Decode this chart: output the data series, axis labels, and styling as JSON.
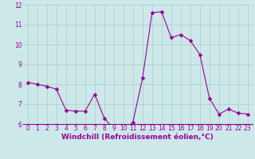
{
  "x": [
    0,
    1,
    2,
    3,
    4,
    5,
    6,
    7,
    8,
    9,
    10,
    11,
    12,
    13,
    14,
    15,
    16,
    17,
    18,
    19,
    20,
    21,
    22,
    23
  ],
  "y": [
    8.1,
    8.0,
    7.9,
    7.75,
    6.7,
    6.65,
    6.65,
    7.5,
    6.3,
    5.75,
    5.6,
    6.1,
    8.3,
    11.6,
    11.65,
    10.35,
    10.5,
    10.2,
    9.5,
    7.3,
    6.5,
    6.75,
    6.55,
    6.5
  ],
  "line_color": "#990099",
  "marker": "D",
  "marker_size": 2.5,
  "marker_color": "#990099",
  "bg_color": "#cce8e8",
  "grid_color": "#aacccc",
  "xlabel": "Windchill (Refroidissement éolien,°C)",
  "xlabel_color": "#990099",
  "tick_color": "#990099",
  "ylim": [
    6,
    12
  ],
  "xlim": [
    -0.5,
    23.5
  ],
  "yticks": [
    6,
    7,
    8,
    9,
    10,
    11,
    12
  ],
  "xticks": [
    0,
    1,
    2,
    3,
    4,
    5,
    6,
    7,
    8,
    9,
    10,
    11,
    12,
    13,
    14,
    15,
    16,
    17,
    18,
    19,
    20,
    21,
    22,
    23
  ],
  "tick_fontsize": 5.5,
  "xlabel_fontsize": 6.5
}
